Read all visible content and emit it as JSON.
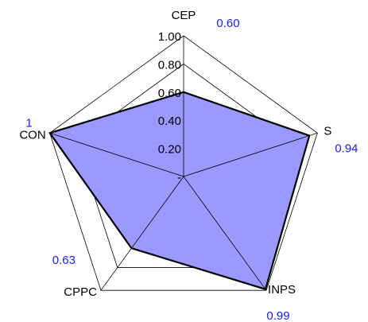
{
  "chart_data": {
    "type": "radar",
    "categories": [
      "CEP",
      "S",
      "INPS",
      "CPPC",
      "CON"
    ],
    "series": [
      {
        "color": "#9999ff",
        "values": [
          0.6,
          0.94,
          0.99,
          0.63,
          1
        ],
        "value_labels": [
          "0.60",
          "0.94",
          "0.99",
          "0.63",
          "1"
        ]
      }
    ],
    "ylim": [
      0,
      1
    ],
    "yticks": [
      {
        "value": 0,
        "label": "-"
      },
      {
        "value": 0.2,
        "label": "0.20"
      },
      {
        "value": 0.4,
        "label": "0.40"
      },
      {
        "value": 0.6,
        "label": "0.60"
      },
      {
        "value": 0.8,
        "label": "0.80"
      },
      {
        "value": 1,
        "label": "1.00"
      }
    ],
    "grid": true
  }
}
